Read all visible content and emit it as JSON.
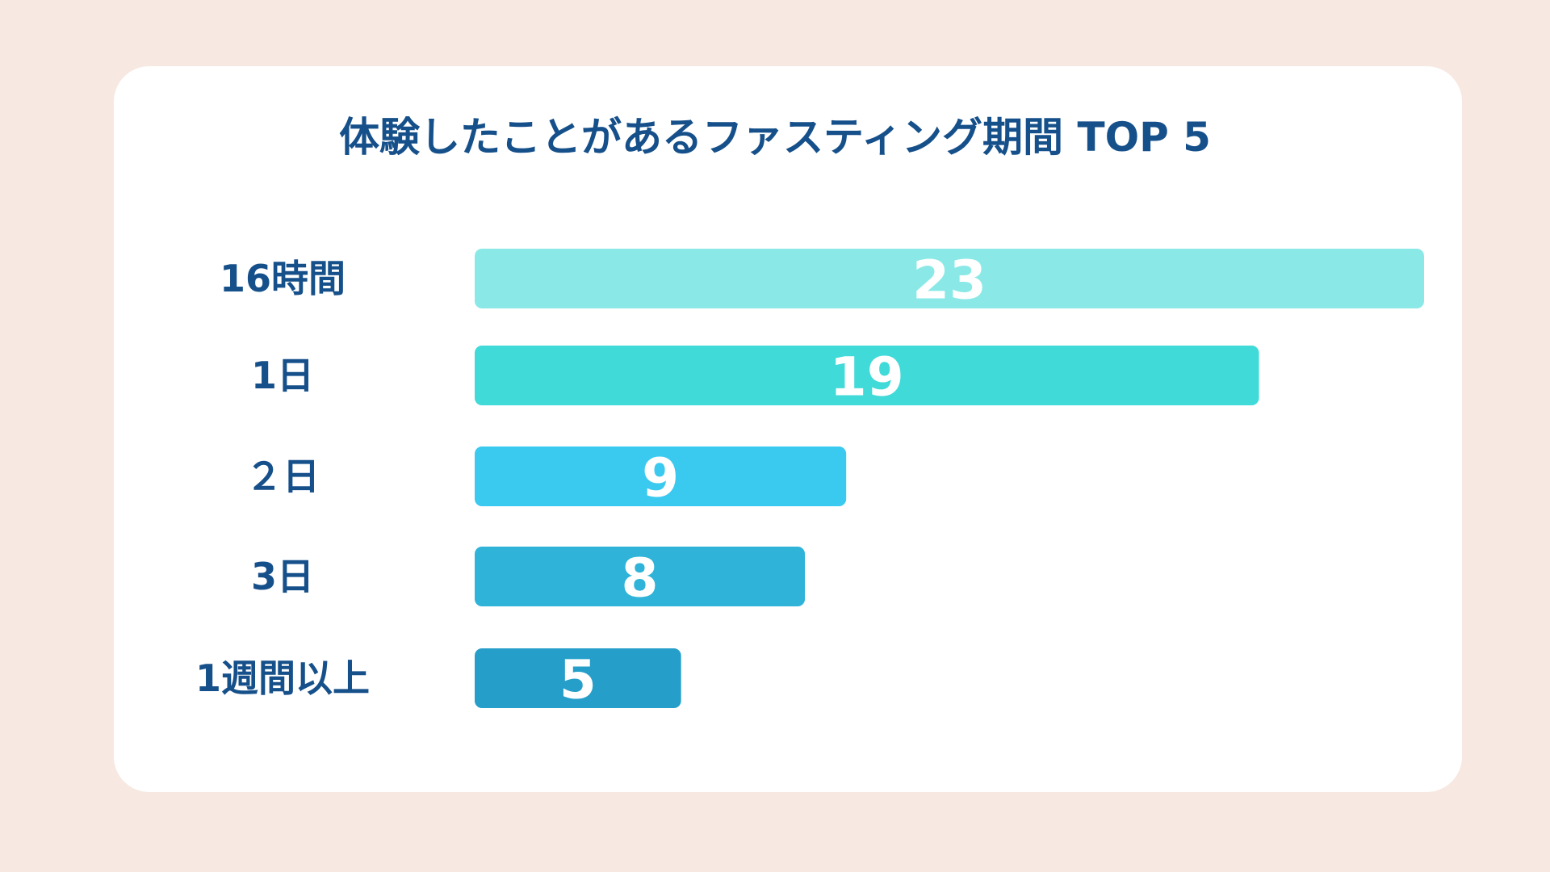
{
  "chart_data": {
    "type": "bar",
    "orientation": "horizontal",
    "title": "体験したことがあるファスティング期間 TOP 5",
    "categories": [
      "16時間",
      "1日",
      "２日",
      "3日",
      "1週間以上"
    ],
    "values": [
      23,
      19,
      9,
      8,
      5
    ],
    "data_labels": [
      "23",
      "19",
      "9",
      "8",
      "5"
    ],
    "colors": [
      "#8ae9e7",
      "#40dad8",
      "#3ac9ef",
      "#2fb3d9",
      "#259fc9"
    ],
    "xlim": [
      0,
      23
    ],
    "grid": false,
    "legend": "none"
  }
}
